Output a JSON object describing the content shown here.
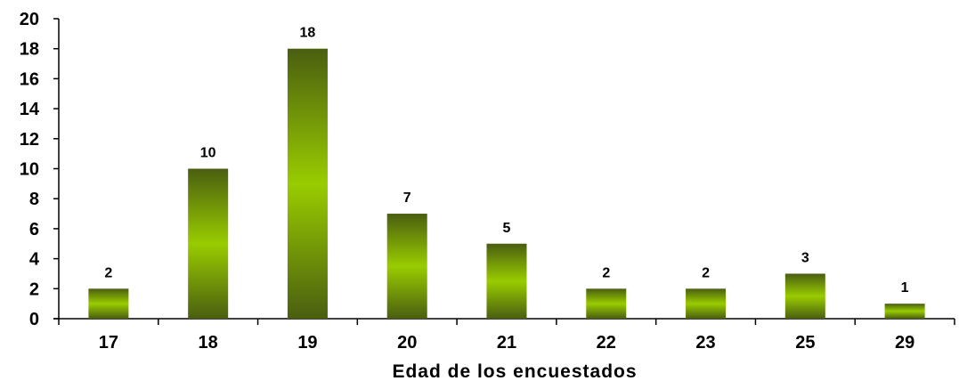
{
  "chart_data": {
    "type": "bar",
    "title": "",
    "xlabel": "Edad de los encuestados",
    "ylabel": "",
    "categories": [
      "17",
      "18",
      "19",
      "20",
      "21",
      "22",
      "23",
      "25",
      "29"
    ],
    "values": [
      2,
      10,
      18,
      7,
      5,
      2,
      2,
      3,
      1
    ],
    "data_labels": [
      "2",
      "10",
      "18",
      "7",
      "5",
      "2",
      "2",
      "3",
      "1"
    ],
    "ylim": [
      0,
      20
    ],
    "yticks": [
      "0",
      "2",
      "4",
      "6",
      "8",
      "10",
      "12",
      "14",
      "16",
      "18",
      "20"
    ],
    "grid": false,
    "legend": "none",
    "colors": {
      "bar_dark": "#4a5e10",
      "bar_light": "#99cc00",
      "axis": "#000000"
    }
  }
}
